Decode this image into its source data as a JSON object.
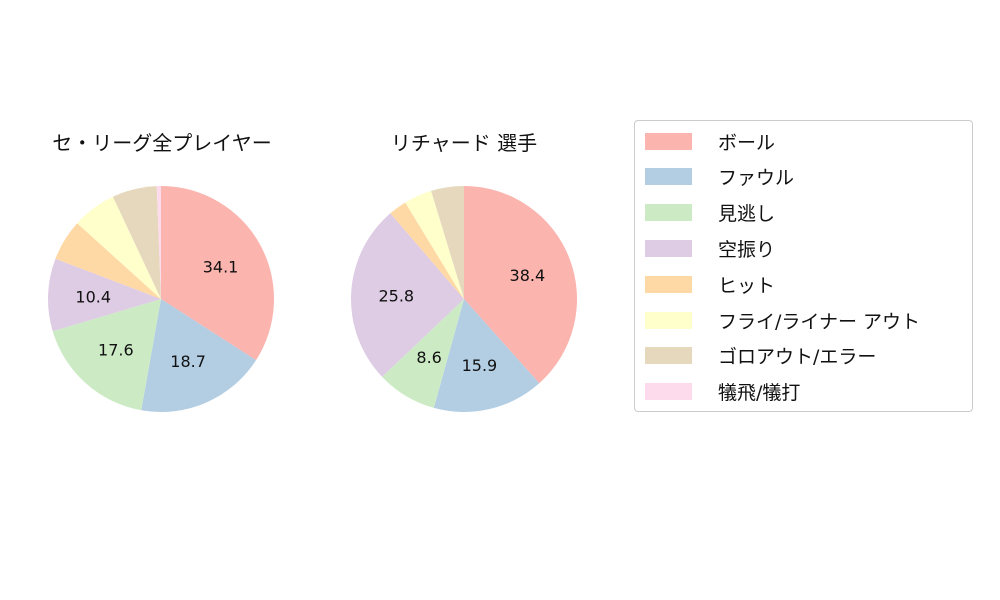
{
  "colors": {
    "ball": "#fbb4ae",
    "foul": "#b3cde3",
    "looking": "#ccebc5",
    "swinging": "#decbe4",
    "hit": "#fed9a6",
    "fly_liner_out": "#ffffcc",
    "grounder_error": "#e5d8bd",
    "sacrifice": "#fddaec"
  },
  "legend": {
    "items": [
      {
        "label": "ボール",
        "color": "#fbb4ae"
      },
      {
        "label": "ファウル",
        "color": "#b3cde3"
      },
      {
        "label": "見逃し",
        "color": "#ccebc5"
      },
      {
        "label": "空振り",
        "color": "#decbe4"
      },
      {
        "label": "ヒット",
        "color": "#fed9a6"
      },
      {
        "label": "フライ/ライナー アウト",
        "color": "#ffffcc"
      },
      {
        "label": "ゴロアウト/エラー",
        "color": "#e5d8bd"
      },
      {
        "label": "犠飛/犠打",
        "color": "#fddaec"
      }
    ]
  },
  "chart_data": [
    {
      "type": "pie",
      "title": "セ・リーグ全プレイヤー",
      "categories": [
        "ボール",
        "ファウル",
        "見逃し",
        "空振り",
        "ヒット",
        "フライ/ライナー アウト",
        "ゴロアウト/エラー",
        "犠飛/犠打"
      ],
      "values": [
        34.1,
        18.7,
        17.6,
        10.4,
        5.9,
        6.3,
        6.4,
        0.6
      ],
      "labels_shown": [
        "34.1",
        "18.7",
        "17.6",
        "10.4"
      ],
      "start_angle": 90,
      "direction": "clockwise"
    },
    {
      "type": "pie",
      "title": "リチャード  選手",
      "categories": [
        "ボール",
        "ファウル",
        "見逃し",
        "空振り",
        "ヒット",
        "フライ/ライナー アウト",
        "ゴロアウト/エラー",
        "犠飛/犠打"
      ],
      "values": [
        38.4,
        15.9,
        8.6,
        25.8,
        2.6,
        4.0,
        4.7,
        0.0
      ],
      "labels_shown": [
        "38.4",
        "15.9",
        "8.6",
        "25.8"
      ],
      "start_angle": 90,
      "direction": "clockwise"
    }
  ]
}
